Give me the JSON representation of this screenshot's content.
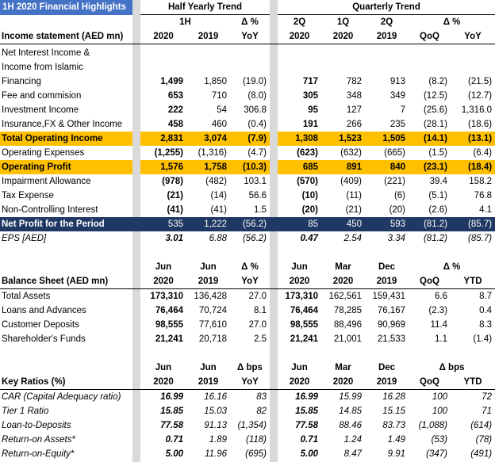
{
  "title": "1H 2020 Financial Highlights",
  "group_headers": {
    "half": "Half Yearly Trend",
    "quarter": "Quarterly Trend"
  },
  "sections": [
    {
      "half_top": [
        "1H",
        "Δ %"
      ],
      "quarter_top": [
        "2Q",
        "1Q",
        "2Q",
        "Δ %"
      ],
      "label": "Income statement (AED mn)",
      "half": [
        "2020",
        "2019",
        "YoY"
      ],
      "quarter": [
        "2020",
        "2020",
        "2019",
        "QoQ",
        "YoY"
      ],
      "rows": [
        {
          "label_lines": [
            "Net Interest Income &",
            "Income from Islamic",
            "Financing"
          ],
          "half": [
            "1,499",
            "1,850",
            "(19.0)"
          ],
          "quarter": [
            "717",
            "782",
            "913",
            "(8.2)",
            "(21.5)"
          ]
        },
        {
          "label": "Fee and commision",
          "half": [
            "653",
            "710",
            "(8.0)"
          ],
          "quarter": [
            "305",
            "348",
            "349",
            "(12.5)",
            "(12.7)"
          ]
        },
        {
          "label": "Investment Income",
          "half": [
            "222",
            "54",
            "306.8"
          ],
          "quarter": [
            "95",
            "127",
            "7",
            "(25.6)",
            "1,316.0"
          ]
        },
        {
          "label": "Insurance,FX & Other Income",
          "half": [
            "458",
            "460",
            "(0.4)"
          ],
          "quarter": [
            "191",
            "266",
            "235",
            "(28.1)",
            "(18.6)"
          ]
        },
        {
          "label": "Total Operating Income",
          "highlight": true,
          "half": [
            "2,831",
            "3,074",
            "(7.9)"
          ],
          "quarter": [
            "1,308",
            "1,523",
            "1,505",
            "(14.1)",
            "(13.1)"
          ]
        },
        {
          "label": "Operating Expenses",
          "half": [
            "(1,255)",
            "(1,316)",
            "(4.7)"
          ],
          "quarter": [
            "(623)",
            "(632)",
            "(665)",
            "(1.5)",
            "(6.4)"
          ]
        },
        {
          "label": "Operating Profit",
          "highlight": true,
          "half": [
            "1,576",
            "1,758",
            "(10.3)"
          ],
          "quarter": [
            "685",
            "891",
            "840",
            "(23.1)",
            "(18.4)"
          ]
        },
        {
          "label": "Impairment Allowance",
          "half": [
            "(978)",
            "(482)",
            "103.1"
          ],
          "quarter": [
            "(570)",
            "(409)",
            "(221)",
            "39.4",
            "158.2"
          ]
        },
        {
          "label": "Tax Expense",
          "half": [
            "(21)",
            "(14)",
            "56.6"
          ],
          "quarter": [
            "(10)",
            "(11)",
            "(6)",
            "(5.1)",
            "76.8"
          ]
        },
        {
          "label": "Non-Controlling Interest",
          "half": [
            "(41)",
            "(41)",
            "1.5"
          ],
          "quarter": [
            "(20)",
            "(21)",
            "(20)",
            "(2.6)",
            "4.1"
          ]
        },
        {
          "label": "Net Profit for the Period",
          "total": true,
          "half": [
            "535",
            "1,222",
            "(56.2)"
          ],
          "quarter": [
            "85",
            "450",
            "593",
            "(81.2)",
            "(85.7)"
          ]
        },
        {
          "label": "EPS [AED]",
          "italic": true,
          "half": [
            "3.01",
            "6.88",
            "(56.2)"
          ],
          "quarter": [
            "0.47",
            "2.54",
            "3.34",
            "(81.2)",
            "(85.7)"
          ]
        }
      ]
    },
    {
      "half_top": [
        "Jun",
        "Jun",
        "Δ %"
      ],
      "quarter_top": [
        "Jun",
        "Mar",
        "Dec",
        "Δ %"
      ],
      "label": "Balance Sheet (AED mn)",
      "half": [
        "2020",
        "2019",
        "YoY"
      ],
      "quarter": [
        "2020",
        "2020",
        "2019",
        "QoQ",
        "YTD"
      ],
      "rows": [
        {
          "label": "Total Assets",
          "half": [
            "173,310",
            "136,428",
            "27.0"
          ],
          "quarter": [
            "173,310",
            "162,561",
            "159,431",
            "6.6",
            "8.7"
          ]
        },
        {
          "label": "Loans and Advances",
          "half": [
            "76,464",
            "70,724",
            "8.1"
          ],
          "quarter": [
            "76,464",
            "78,285",
            "76,167",
            "(2.3)",
            "0.4"
          ]
        },
        {
          "label": "Customer Deposits",
          "half": [
            "98,555",
            "77,610",
            "27.0"
          ],
          "quarter": [
            "98,555",
            "88,496",
            "90,969",
            "11.4",
            "8.3"
          ]
        },
        {
          "label": "Shareholder's Funds",
          "half": [
            "21,241",
            "20,718",
            "2.5"
          ],
          "quarter": [
            "21,241",
            "21,001",
            "21,533",
            "1.1",
            "(1.4)"
          ]
        }
      ]
    },
    {
      "half_top": [
        "Jun",
        "Jun",
        "Δ bps"
      ],
      "quarter_top": [
        "Jun",
        "Mar",
        "Dec",
        "Δ bps"
      ],
      "label": "Key Ratios (%)",
      "half": [
        "2020",
        "2019",
        "YoY"
      ],
      "quarter": [
        "2020",
        "2020",
        "2019",
        "QoQ",
        "YTD"
      ],
      "rows": [
        {
          "label": "CAR (Capital Adequacy ratio)",
          "italic": true,
          "half": [
            "16.99",
            "16.16",
            "83"
          ],
          "quarter": [
            "16.99",
            "15.99",
            "16.28",
            "100",
            "72"
          ]
        },
        {
          "label": "Tier 1 Ratio",
          "italic": true,
          "half": [
            "15.85",
            "15.03",
            "82"
          ],
          "quarter": [
            "15.85",
            "14.85",
            "15.15",
            "100",
            "71"
          ]
        },
        {
          "label": "Loan-to-Deposits",
          "italic": true,
          "half": [
            "77.58",
            "91.13",
            "(1,354)"
          ],
          "quarter": [
            "77.58",
            "88.46",
            "83.73",
            "(1,088)",
            "(614)"
          ]
        },
        {
          "label": "Return-on Assets*",
          "italic": true,
          "half": [
            "0.71",
            "1.89",
            "(118)"
          ],
          "quarter": [
            "0.71",
            "1.24",
            "1.49",
            "(53)",
            "(78)"
          ]
        },
        {
          "label": "Return-on-Equity*",
          "italic": true,
          "half": [
            "5.00",
            "11.96",
            "(695)"
          ],
          "quarter": [
            "5.00",
            "8.47",
            "9.91",
            "(347)",
            "(491)"
          ]
        }
      ]
    }
  ]
}
